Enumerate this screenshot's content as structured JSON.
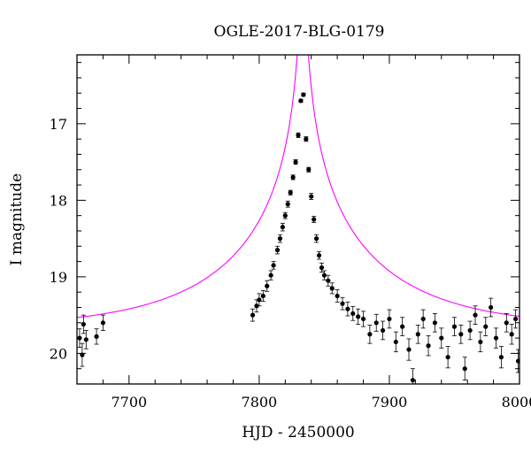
{
  "chart_data": {
    "type": "scatter",
    "title": "OGLE-2017-BLG-0179",
    "xlabel": "HJD - 2450000",
    "ylabel": "I magnitude",
    "xlim": [
      7660,
      8000
    ],
    "ylim": [
      20.4,
      16.1
    ],
    "y_inverted": true,
    "grid": false,
    "x_ticks": [
      7700,
      7800,
      7900,
      8000
    ],
    "y_ticks": [
      17,
      18,
      19,
      20
    ],
    "series": [
      {
        "kind": "data_points_with_errorbars",
        "color": "#000000",
        "points": [
          [
            7662,
            19.8,
            0.12
          ],
          [
            7664,
            20.02,
            0.15
          ],
          [
            7665,
            19.62,
            0.12
          ],
          [
            7667,
            19.82,
            0.12
          ],
          [
            7675,
            19.78,
            0.1
          ],
          [
            7680,
            19.6,
            0.1
          ],
          [
            7795,
            19.5,
            0.08
          ],
          [
            7798,
            19.38,
            0.08
          ],
          [
            7800,
            19.3,
            0.08
          ],
          [
            7803,
            19.25,
            0.07
          ],
          [
            7806,
            19.12,
            0.07
          ],
          [
            7809,
            18.98,
            0.06
          ],
          [
            7811,
            18.85,
            0.05
          ],
          [
            7814,
            18.65,
            0.05
          ],
          [
            7816,
            18.5,
            0.05
          ],
          [
            7818,
            18.35,
            0.05
          ],
          [
            7820,
            18.2,
            0.04
          ],
          [
            7822,
            18.05,
            0.04
          ],
          [
            7824,
            17.9,
            0.03
          ],
          [
            7826,
            17.7,
            0.03
          ],
          [
            7828,
            17.5,
            0.03
          ],
          [
            7830,
            17.15,
            0.03
          ],
          [
            7832,
            16.7,
            0.02
          ],
          [
            7834,
            16.62,
            0.02
          ],
          [
            7836,
            17.2,
            0.03
          ],
          [
            7838,
            17.6,
            0.03
          ],
          [
            7840,
            17.95,
            0.04
          ],
          [
            7842,
            18.25,
            0.04
          ],
          [
            7844,
            18.5,
            0.05
          ],
          [
            7846,
            18.72,
            0.05
          ],
          [
            7848,
            18.88,
            0.06
          ],
          [
            7850,
            18.98,
            0.06
          ],
          [
            7853,
            19.05,
            0.07
          ],
          [
            7856,
            19.15,
            0.07
          ],
          [
            7860,
            19.25,
            0.08
          ],
          [
            7864,
            19.35,
            0.08
          ],
          [
            7868,
            19.42,
            0.09
          ],
          [
            7872,
            19.48,
            0.09
          ],
          [
            7876,
            19.52,
            0.1
          ],
          [
            7880,
            19.55,
            0.1
          ],
          [
            7885,
            19.75,
            0.12
          ],
          [
            7890,
            19.6,
            0.11
          ],
          [
            7895,
            19.7,
            0.12
          ],
          [
            7900,
            19.55,
            0.12
          ],
          [
            7905,
            19.85,
            0.13
          ],
          [
            7910,
            19.65,
            0.12
          ],
          [
            7915,
            19.95,
            0.14
          ],
          [
            7918,
            20.35,
            0.15
          ],
          [
            7922,
            19.75,
            0.12
          ],
          [
            7926,
            19.55,
            0.12
          ],
          [
            7930,
            19.9,
            0.13
          ],
          [
            7935,
            19.6,
            0.12
          ],
          [
            7940,
            19.8,
            0.13
          ],
          [
            7945,
            20.05,
            0.14
          ],
          [
            7950,
            19.65,
            0.12
          ],
          [
            7955,
            19.75,
            0.12
          ],
          [
            7958,
            20.2,
            0.15
          ],
          [
            7962,
            19.7,
            0.12
          ],
          [
            7966,
            19.5,
            0.12
          ],
          [
            7970,
            19.85,
            0.13
          ],
          [
            7974,
            19.65,
            0.12
          ],
          [
            7978,
            19.4,
            0.12
          ],
          [
            7982,
            19.8,
            0.13
          ],
          [
            7986,
            20.05,
            0.14
          ],
          [
            7990,
            19.6,
            0.12
          ],
          [
            7994,
            19.75,
            0.13
          ],
          [
            7997,
            19.55,
            0.12
          ],
          [
            7999,
            20.1,
            0.15
          ]
        ]
      },
      {
        "kind": "model_curve",
        "color": "#ff00ff",
        "t0": 7833.5,
        "u0": 0.008,
        "tE": 120,
        "baseline": 19.68
      }
    ]
  }
}
